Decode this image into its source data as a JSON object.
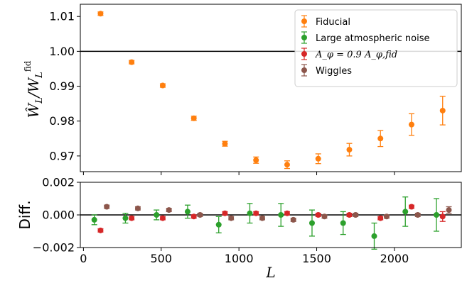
{
  "colors": {
    "fiducial": "#ff7f0e",
    "atmospheric": "#2ca02c",
    "aphi": "#d62728",
    "wiggles": "#8c564b"
  },
  "legend_labels": {
    "fiducial": "Fiducial",
    "atmospheric": "Large atmospheric noise",
    "aphi": "A_φ = 0.9 A_φ,fid",
    "wiggles": "Wiggles"
  },
  "chart_data": [
    {
      "type": "scatter",
      "panel": "top",
      "xlabel": "",
      "ylabel": "Ŵ_L / W_L^fid",
      "xlim": [
        -20,
        2430
      ],
      "ylim": [
        0.9655,
        1.0135
      ],
      "reference_line": 1.0,
      "x_ticks": [
        "",
        "",
        "",
        "",
        ""
      ],
      "y_ticks": [
        "0.97",
        "0.98",
        "0.99",
        "1.00",
        "1.01"
      ],
      "legend_position": "top-right",
      "grid": false,
      "series": [
        {
          "key": "fiducial",
          "x": [
            110,
            310,
            510,
            710,
            910,
            1110,
            1310,
            1510,
            1710,
            1910,
            2110,
            2310
          ],
          "y": [
            1.0108,
            0.9969,
            0.9902,
            0.9808,
            0.9735,
            0.9688,
            0.9675,
            0.9692,
            0.9718,
            0.975,
            0.979,
            0.983
          ],
          "yerr": [
            0.0005,
            0.0005,
            0.0005,
            0.0006,
            0.0007,
            0.0009,
            0.0011,
            0.0014,
            0.0018,
            0.0023,
            0.0031,
            0.0041
          ]
        }
      ]
    },
    {
      "type": "scatter",
      "panel": "bottom",
      "xlabel": "L",
      "ylabel": "Diff.",
      "xlim": [
        -20,
        2430
      ],
      "ylim": [
        -0.002,
        0.002
      ],
      "reference_line": 0.0,
      "x_ticks": [
        "0",
        "500",
        "1000",
        "1500",
        "2000"
      ],
      "y_ticks": [
        "−0.002",
        "0.000",
        "0.002"
      ],
      "grid": false,
      "series": [
        {
          "key": "atmospheric",
          "x": [
            70,
            270,
            470,
            670,
            870,
            1070,
            1270,
            1470,
            1670,
            1870,
            2070,
            2270
          ],
          "y": [
            -0.0003,
            -0.0002,
            0.0,
            0.0002,
            -0.0006,
            0.0001,
            0.0,
            -0.0005,
            -0.0005,
            -0.0013,
            0.0002,
            0.0
          ],
          "yerr": [
            0.0003,
            0.0003,
            0.0003,
            0.0004,
            0.0005,
            0.0006,
            0.0007,
            0.0008,
            0.0007,
            0.0008,
            0.0009,
            0.001
          ]
        },
        {
          "key": "aphi",
          "x": [
            110,
            310,
            510,
            710,
            910,
            1110,
            1310,
            1510,
            1710,
            1910,
            2110,
            2310
          ],
          "y": [
            -0.00095,
            -0.0002,
            -0.0002,
            -0.0001,
            0.0001,
            0.0001,
            0.0001,
            0.0,
            0.0,
            -0.0002,
            0.0005,
            -0.0001
          ],
          "yerr": [
            0.0001,
            0.0001,
            0.0001,
            0.0001,
            0.0001,
            0.0001,
            0.0001,
            0.0001,
            0.0001,
            0.0001,
            0.0001,
            0.0003
          ]
        },
        {
          "key": "wiggles",
          "x": [
            150,
            350,
            550,
            750,
            950,
            1150,
            1350,
            1550,
            1750,
            1950,
            2150,
            2350
          ],
          "y": [
            0.0005,
            0.0004,
            0.0003,
            0.0,
            -0.0002,
            -0.0002,
            -0.0003,
            -0.0001,
            0.0,
            -0.0001,
            0.0,
            0.0003
          ],
          "yerr": [
            0.0001,
            0.0001,
            0.0001,
            0.0001,
            0.0001,
            0.0001,
            0.0001,
            0.0001,
            0.0001,
            0.0001,
            0.0001,
            0.0002
          ]
        }
      ]
    }
  ]
}
